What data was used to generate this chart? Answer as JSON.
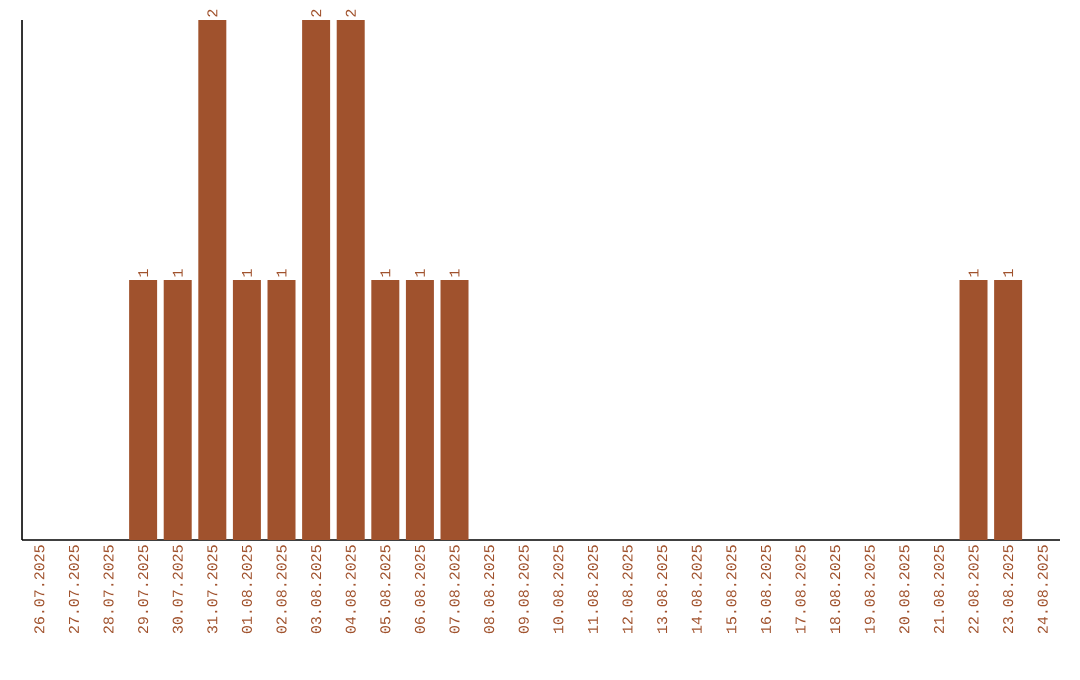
{
  "chart_data": {
    "type": "bar",
    "color": "#a0522d",
    "categories": [
      "26.07.2025",
      "27.07.2025",
      "28.07.2025",
      "29.07.2025",
      "30.07.2025",
      "31.07.2025",
      "01.08.2025",
      "02.08.2025",
      "03.08.2025",
      "04.08.2025",
      "05.08.2025",
      "06.08.2025",
      "07.08.2025",
      "08.08.2025",
      "09.08.2025",
      "10.08.2025",
      "11.08.2025",
      "12.08.2025",
      "13.08.2025",
      "14.08.2025",
      "15.08.2025",
      "16.08.2025",
      "17.08.2025",
      "18.08.2025",
      "19.08.2025",
      "20.08.2025",
      "21.08.2025",
      "22.08.2025",
      "23.08.2025",
      "24.08.2025"
    ],
    "values": [
      0,
      0,
      0,
      1,
      1,
      2,
      1,
      1,
      2,
      2,
      1,
      1,
      1,
      0,
      0,
      0,
      0,
      0,
      0,
      0,
      0,
      0,
      0,
      0,
      0,
      0,
      0,
      1,
      1,
      0
    ],
    "value_labels": [
      null,
      null,
      null,
      "1",
      "1",
      "2",
      "1",
      "1",
      "2",
      "2",
      "1",
      "1",
      "1",
      null,
      null,
      null,
      null,
      null,
      null,
      null,
      null,
      null,
      null,
      null,
      null,
      null,
      null,
      "1",
      "1",
      null
    ]
  }
}
